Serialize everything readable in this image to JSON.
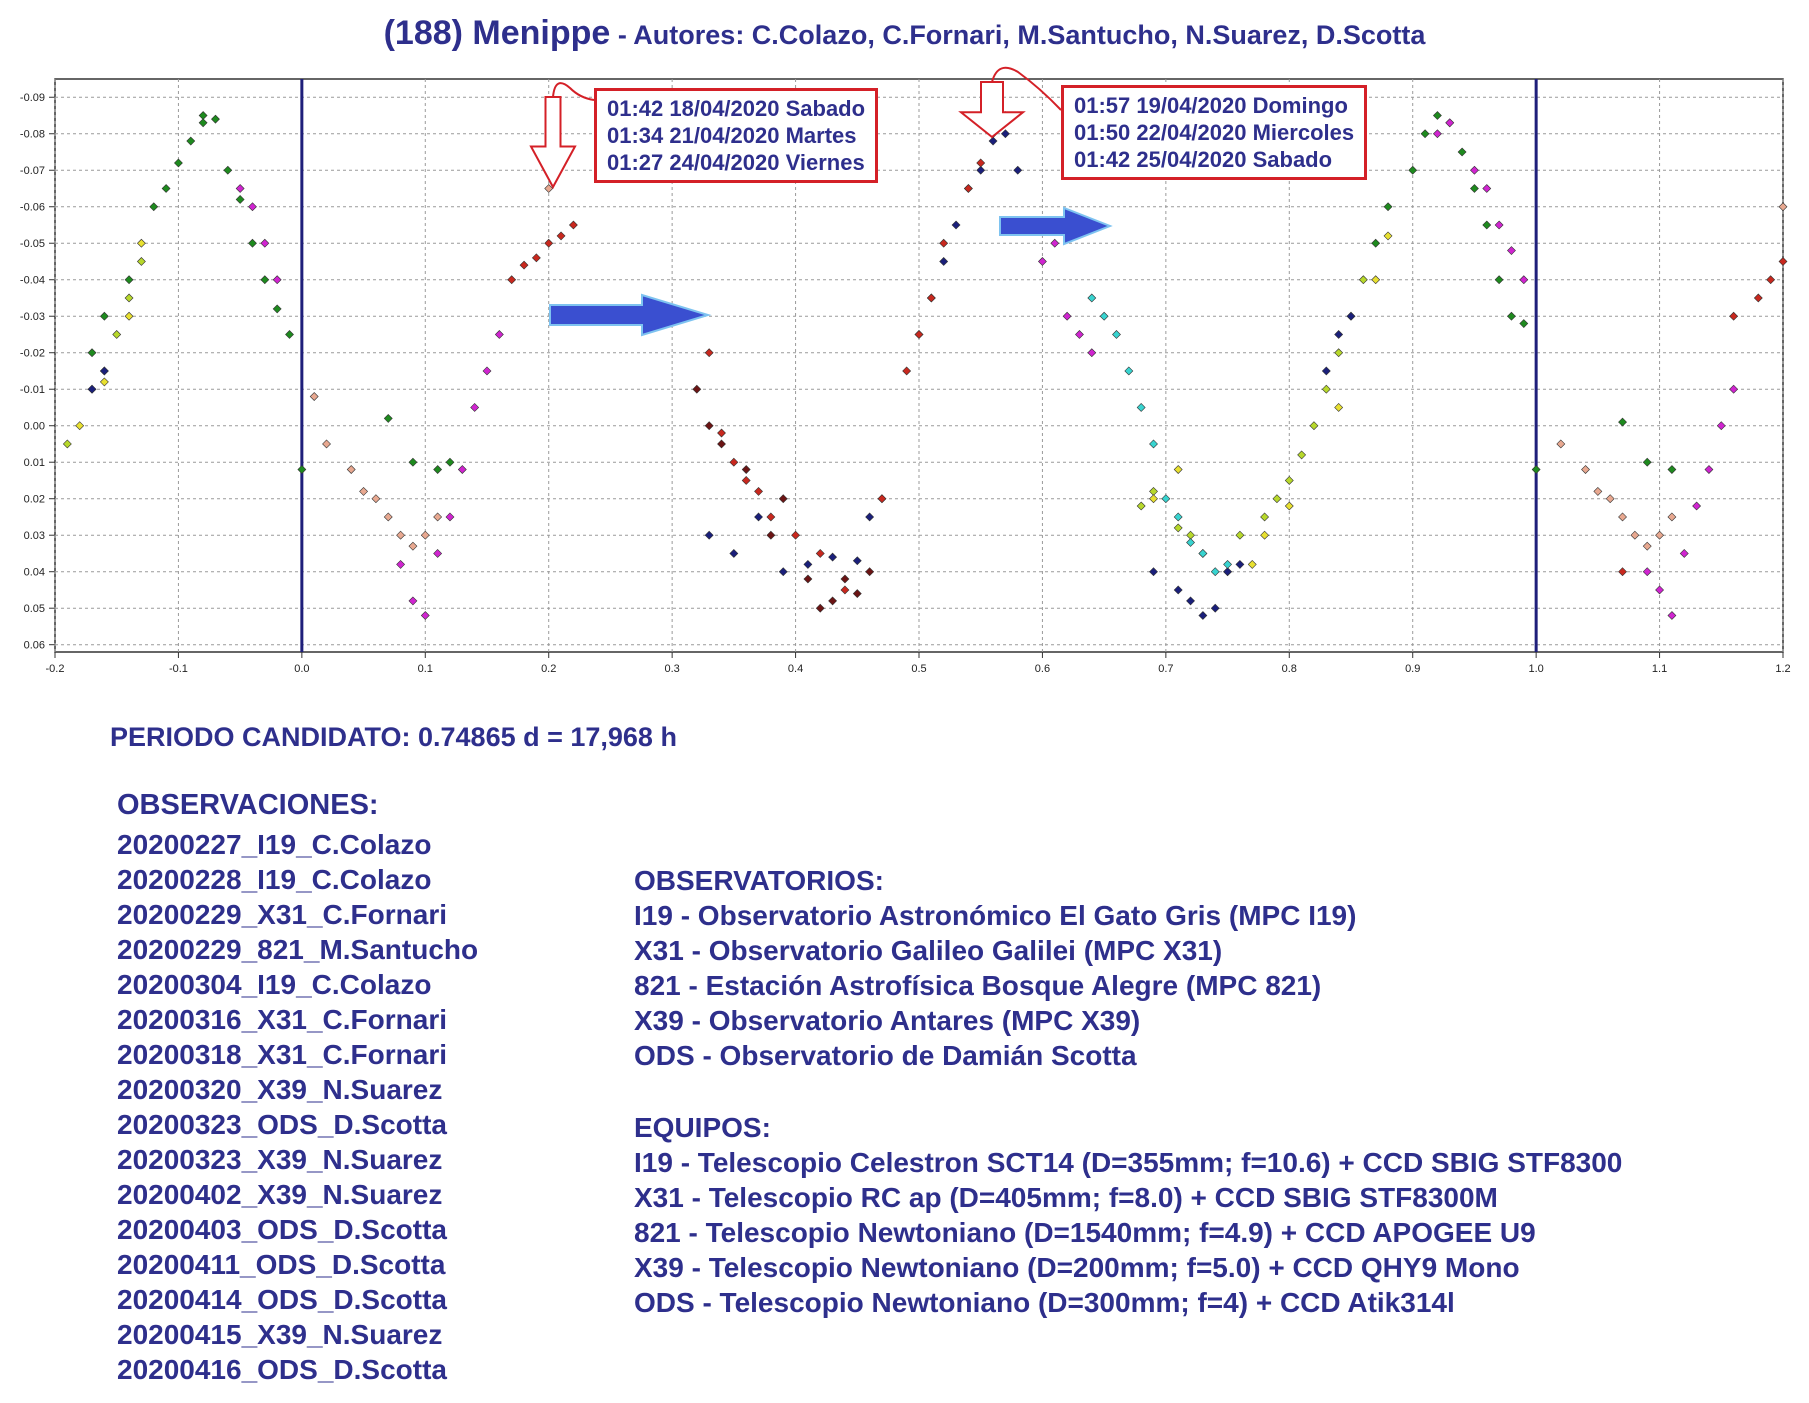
{
  "title": {
    "main": "(188) Menippe",
    "authors": " - Autores: C.Colazo, C.Fornari, M.Santucho, N.Suarez, D.Scotta"
  },
  "annotations": {
    "box1": [
      "01:42 18/04/2020 Sabado",
      "01:34 21/04/2020 Martes",
      "01:27 24/04/2020 Viernes"
    ],
    "box2": [
      "01:57 19/04/2020 Domingo",
      "01:50 22/04/2020 Miercoles",
      "01:42 25/04/2020 Sabado"
    ]
  },
  "period_text": "PERIODO CANDIDATO: 0.74865 d = 17,968 h",
  "observaciones": {
    "title": "OBSERVACIONES:",
    "items": [
      "20200227_I19_C.Colazo",
      "20200228_I19_C.Colazo",
      "20200229_X31_C.Fornari",
      "20200229_821_M.Santucho",
      "20200304_I19_C.Colazo",
      "20200316_X31_C.Fornari",
      "20200318_X31_C.Fornari",
      "20200320_X39_N.Suarez",
      "20200323_ODS_D.Scotta",
      "20200323_X39_N.Suarez",
      "20200402_X39_N.Suarez",
      "20200403_ODS_D.Scotta",
      "20200411_ODS_D.Scotta",
      "20200414_ODS_D.Scotta",
      "20200415_X39_N.Suarez",
      "20200416_ODS_D.Scotta"
    ]
  },
  "observatorios": {
    "title": "OBSERVATORIOS:",
    "items": [
      "I19 - Observatorio Astronómico El Gato Gris (MPC I19)",
      "X31 - Observatorio Galileo Galilei (MPC X31)",
      "821 - Estación Astrofísica Bosque Alegre (MPC 821)",
      "X39 - Observatorio Antares (MPC X39)",
      "ODS - Observatorio de Damián Scotta"
    ]
  },
  "equipos": {
    "title": "EQUIPOS:",
    "items": [
      "I19 - Telescopio Celestron SCT14 (D=355mm; f=10.6) + CCD SBIG STF8300",
      "X31 - Telescopio RC ap (D=405mm; f=8.0) + CCD SBIG STF8300M",
      "821 - Telescopio  Newtoniano (D=1540mm; f=4.9) + CCD APOGEE U9",
      "X39 - Telescopio Newtoniano (D=200mm; f=5.0) + CCD QHY9 Mono",
      "ODS - Telescopio Newtoniano (D=300mm; f=4) + CCD Atik314l"
    ]
  },
  "colors": {
    "text": "#2e2f8c",
    "annotation_border": "#d42027",
    "phase_line": "#1f1f7a",
    "arrow_blue": "#3a4fd0",
    "grid": "#9a9a9a"
  },
  "chart_data": {
    "type": "scatter",
    "title": "",
    "xlabel": "",
    "ylabel": "",
    "xlim": [
      -0.2,
      1.2
    ],
    "ylim": [
      -0.095,
      0.062
    ],
    "y_inverted": true,
    "grid": true,
    "x_ticks": [
      "-0.2",
      "-0.1",
      "0.0",
      "0.1",
      "0.2",
      "0.3",
      "0.4",
      "0.5",
      "0.6",
      "0.7",
      "0.8",
      "0.9",
      "1.0",
      "1.1",
      "1.2"
    ],
    "y_ticks": [
      "-0.09",
      "-0.08",
      "-0.07",
      "-0.06",
      "-0.05",
      "-0.04",
      "-0.03",
      "-0.02",
      "-0.01",
      "0.00",
      "0.01",
      "0.02",
      "0.03",
      "0.04",
      "0.05",
      "0.06"
    ],
    "vertical_lines": [
      0.0,
      1.0
    ],
    "series": [
      {
        "color": "#1e8a1e",
        "x": [
          -0.17,
          -0.16,
          -0.14,
          -0.12,
          -0.11,
          -0.1,
          -0.09,
          -0.08,
          -0.08,
          -0.07,
          -0.06,
          -0.05,
          -0.04,
          -0.03,
          -0.02,
          -0.01,
          0.0,
          0.07,
          0.09,
          0.11,
          0.12,
          0.87,
          0.88,
          0.9,
          0.91,
          0.92,
          0.93,
          0.94,
          0.95,
          0.96,
          0.97,
          0.98,
          0.99,
          1.0,
          1.07,
          1.09,
          1.11
        ],
        "y": [
          -0.02,
          -0.03,
          -0.04,
          -0.06,
          -0.065,
          -0.072,
          -0.078,
          -0.083,
          -0.085,
          -0.084,
          -0.07,
          -0.062,
          -0.05,
          -0.04,
          -0.032,
          -0.025,
          0.012,
          -0.002,
          0.01,
          0.012,
          0.01,
          -0.05,
          -0.06,
          -0.07,
          -0.08,
          -0.085,
          -0.083,
          -0.075,
          -0.065,
          -0.055,
          -0.04,
          -0.03,
          -0.028,
          0.012,
          -0.001,
          0.01,
          0.012
        ]
      },
      {
        "color": "#b7d82b",
        "x": [
          -0.19,
          -0.17,
          -0.16,
          -0.15,
          -0.14,
          -0.13,
          0.68,
          0.69,
          0.71,
          0.72,
          0.76,
          0.78,
          0.79,
          0.8,
          0.81,
          0.82,
          0.83,
          0.84,
          0.85,
          0.86
        ],
        "y": [
          0.005,
          -0.01,
          -0.015,
          -0.025,
          -0.035,
          -0.045,
          0.022,
          0.018,
          0.028,
          0.03,
          0.03,
          0.025,
          0.02,
          0.015,
          0.008,
          0.0,
          -0.01,
          -0.02,
          -0.03,
          -0.04
        ]
      },
      {
        "color": "#e8e030",
        "x": [
          -0.18,
          -0.16,
          -0.14,
          -0.13,
          0.69,
          0.71,
          0.73,
          0.75,
          0.77,
          0.78,
          0.8,
          0.84,
          0.87,
          0.88
        ],
        "y": [
          0.0,
          -0.012,
          -0.03,
          -0.05,
          0.02,
          0.012,
          0.035,
          0.04,
          0.038,
          0.03,
          0.022,
          -0.005,
          -0.04,
          -0.052
        ]
      },
      {
        "color": "#1a1f7a",
        "x": [
          -0.17,
          -0.16,
          0.33,
          0.35,
          0.37,
          0.39,
          0.41,
          0.43,
          0.45,
          0.46,
          0.47,
          0.5,
          0.51,
          0.52,
          0.53,
          0.54,
          0.55,
          0.56,
          0.57,
          0.58,
          0.69,
          0.71,
          0.72,
          0.73,
          0.74,
          0.75,
          0.76,
          0.83,
          0.84,
          0.85
        ],
        "y": [
          -0.01,
          -0.015,
          0.03,
          0.035,
          0.025,
          0.04,
          0.038,
          0.036,
          0.037,
          0.025,
          0.02,
          -0.025,
          -0.035,
          -0.045,
          -0.055,
          -0.065,
          -0.07,
          -0.078,
          -0.08,
          -0.07,
          0.04,
          0.045,
          0.048,
          0.052,
          0.05,
          0.04,
          0.038,
          -0.015,
          -0.025,
          -0.03
        ]
      },
      {
        "color": "#c8281e",
        "x": [
          0.17,
          0.18,
          0.19,
          0.2,
          0.21,
          0.22,
          0.33,
          0.34,
          0.35,
          0.36,
          0.37,
          0.38,
          0.4,
          0.42,
          0.44,
          0.47,
          0.49,
          0.5,
          0.51,
          0.52,
          0.54,
          0.55,
          0.56,
          0.57,
          1.07,
          1.16,
          1.18,
          1.19,
          1.2
        ],
        "y": [
          -0.04,
          -0.044,
          -0.046,
          -0.05,
          -0.052,
          -0.055,
          -0.02,
          0.002,
          0.01,
          0.015,
          0.018,
          0.025,
          0.03,
          0.035,
          0.045,
          0.02,
          -0.015,
          -0.025,
          -0.035,
          -0.05,
          -0.065,
          -0.072,
          -0.08,
          -0.085,
          0.04,
          -0.03,
          -0.035,
          -0.04,
          -0.045
        ]
      },
      {
        "color": "#6b1414",
        "x": [
          0.32,
          0.33,
          0.34,
          0.36,
          0.38,
          0.39,
          0.41,
          0.42,
          0.43,
          0.44,
          0.45,
          0.46
        ],
        "y": [
          -0.01,
          0.0,
          0.005,
          0.012,
          0.03,
          0.02,
          0.042,
          0.05,
          0.048,
          0.042,
          0.046,
          0.04
        ]
      },
      {
        "color": "#e8a890",
        "x": [
          0.01,
          0.02,
          0.04,
          0.05,
          0.06,
          0.07,
          0.08,
          0.09,
          0.1,
          0.11,
          0.2,
          1.02,
          1.04,
          1.05,
          1.06,
          1.07,
          1.08,
          1.09,
          1.1,
          1.11,
          1.2
        ],
        "y": [
          -0.008,
          0.005,
          0.012,
          0.018,
          0.02,
          0.025,
          0.03,
          0.033,
          0.03,
          0.025,
          -0.065,
          0.005,
          0.012,
          0.018,
          0.02,
          0.025,
          0.03,
          0.033,
          0.03,
          0.025,
          -0.06
        ]
      },
      {
        "color": "#d024d0",
        "x": [
          -0.05,
          -0.04,
          -0.03,
          -0.02,
          0.08,
          0.09,
          0.1,
          0.11,
          0.12,
          0.13,
          0.14,
          0.15,
          0.16,
          0.6,
          0.61,
          0.62,
          0.63,
          0.64,
          0.92,
          0.93,
          0.95,
          0.96,
          0.97,
          0.98,
          0.99,
          1.09,
          1.1,
          1.11,
          1.12,
          1.13,
          1.14,
          1.15,
          1.16
        ],
        "y": [
          -0.065,
          -0.06,
          -0.05,
          -0.04,
          0.038,
          0.048,
          0.052,
          0.035,
          0.025,
          0.012,
          -0.005,
          -0.015,
          -0.025,
          -0.045,
          -0.05,
          -0.03,
          -0.025,
          -0.02,
          -0.08,
          -0.083,
          -0.07,
          -0.065,
          -0.055,
          -0.048,
          -0.04,
          0.04,
          0.045,
          0.052,
          0.035,
          0.022,
          0.012,
          0.0,
          -0.01
        ]
      },
      {
        "color": "#38d4d0",
        "x": [
          0.64,
          0.65,
          0.66,
          0.67,
          0.68,
          0.69,
          0.7,
          0.71,
          0.72,
          0.73,
          0.74,
          0.75
        ],
        "y": [
          -0.035,
          -0.03,
          -0.025,
          -0.015,
          -0.005,
          0.005,
          0.02,
          0.025,
          0.032,
          0.035,
          0.04,
          0.038
        ]
      }
    ]
  }
}
